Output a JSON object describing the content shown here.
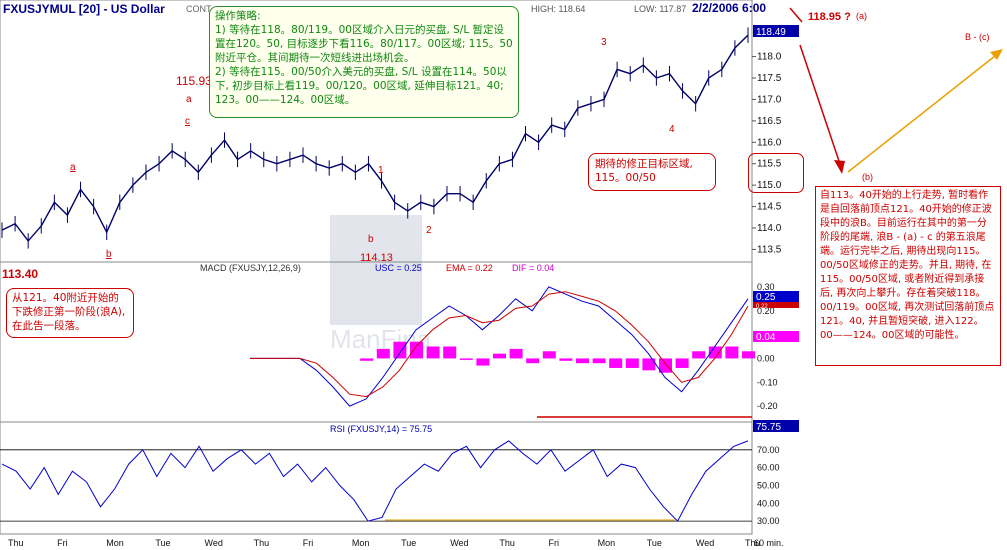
{
  "header": {
    "symbol": "FXUSJYMUL [20] - US Dollar",
    "cont": "CONT",
    "high_label": "HIGH: 118.64",
    "low_label": "LOW: 117.87",
    "datetime": "2/2/2006 6:00"
  },
  "notes": {
    "strategy": [
      "操作策略:",
      "1) 等待在118。80/119。00区域介入日元的买盘, S/L 暂定设置在120。50, 目标逐步下看116。80/117。00区域; 115。50附近平仓。其间期待一次短线进出场机会。",
      "2) 等待在115。00/50介入美元的买盘, S/L 设置在114。50以下, 初步目标上看119。00/120。00区域, 延伸目标121。40; 123。00——124。00区域。"
    ],
    "target_zone": "期待的修正目标区域, 115。00/50",
    "left_note": "从121。40附近开始的下跌修正第一阶段(浪A), 在此告一段落。",
    "right_note": "自113。40开始的上行走势, 暂时看作是自回落前顶点121。40开始的修正波段中的浪B。目前运行在其中的第一分阶段的尾端, 浪B - (a) - c 的第五浪尾端。运行完毕之后, 期待出现向115。00/50区域修正的走势。并且, 期待, 在115。00/50区域, 或者附近得到承接后, 再次向上攀升。存在着突破118。00/119。00区域, 再次测试回落前顶点121。40, 并且暂短突破, 进入122。00——124。00区域的可能性。"
  },
  "chart_data": {
    "type": "line",
    "x_ticks": [
      "Thu",
      "Fri",
      "Mon",
      "Tue",
      "Wed",
      "Thu",
      "Fri",
      "Mon",
      "Tue",
      "Wed",
      "Thu",
      "Fri",
      "Mon",
      "Tue",
      "Wed",
      "Thu",
      "60 min."
    ],
    "price": {
      "y_ticks": [
        113.5,
        114,
        114.5,
        115,
        115.5,
        116,
        116.5,
        117,
        117.5,
        118
      ],
      "ylim": [
        113.3,
        118.9
      ],
      "current_value": "118.49",
      "series": [
        113.95,
        114.1,
        113.7,
        114.05,
        114.6,
        114.3,
        114.9,
        114.5,
        113.9,
        114.6,
        115.0,
        115.3,
        115.5,
        115.8,
        115.6,
        115.3,
        115.7,
        116.05,
        115.6,
        115.8,
        115.6,
        115.5,
        115.6,
        115.7,
        115.5,
        115.4,
        115.5,
        115.3,
        115.5,
        115.1,
        114.6,
        114.4,
        114.6,
        114.5,
        114.8,
        114.8,
        114.6,
        115.1,
        115.5,
        115.6,
        116.2,
        116.0,
        116.4,
        116.3,
        116.8,
        116.9,
        117.0,
        117.7,
        117.6,
        117.8,
        117.5,
        117.6,
        117.2,
        116.9,
        117.5,
        117.7,
        118.2,
        118.5
      ],
      "labels": [
        "115.93",
        "114.13",
        "113.40",
        "118.95 ?",
        "(a)",
        "(b)",
        "B - (c)",
        "a",
        "b",
        "c",
        "1",
        "2",
        "3",
        "4"
      ]
    },
    "macd": {
      "title": "MACD (FXUSJY,12,26,9)",
      "usc": "USC = 0.25",
      "ema": "EMA = 0.22",
      "dif": "DIF = 0.04",
      "y_ticks": [
        "0.30",
        "0.20",
        "0.10",
        "0.00",
        "-0.10",
        "-0.20"
      ],
      "ylim": [
        -0.25,
        0.35
      ],
      "value_labels": [
        "0.25",
        "0.22",
        "0.04"
      ],
      "macd_line": [
        0.0,
        0.0,
        0.0,
        0.0,
        -0.05,
        -0.12,
        -0.2,
        -0.17,
        -0.08,
        0.02,
        0.12,
        0.17,
        0.22,
        0.18,
        0.12,
        0.18,
        0.25,
        0.2,
        0.3,
        0.27,
        0.24,
        0.22,
        0.16,
        0.1,
        0.02,
        -0.08,
        -0.14,
        -0.05,
        0.05,
        0.15,
        0.25
      ],
      "signal_line": [
        0.0,
        0.0,
        0.0,
        0.0,
        -0.02,
        -0.08,
        -0.15,
        -0.16,
        -0.12,
        -0.05,
        0.05,
        0.12,
        0.17,
        0.18,
        0.15,
        0.16,
        0.21,
        0.22,
        0.27,
        0.28,
        0.26,
        0.24,
        0.2,
        0.14,
        0.07,
        -0.02,
        -0.1,
        -0.08,
        0.0,
        0.1,
        0.22
      ],
      "histogram": [
        0,
        0,
        0,
        0,
        -0.03,
        -0.04,
        -0.05,
        -0.01,
        0.04,
        0.07,
        0.07,
        0.05,
        0.05,
        0.0,
        -0.03,
        0.02,
        0.04,
        -0.02,
        0.03,
        -0.01,
        -0.02,
        -0.02,
        -0.04,
        -0.04,
        -0.05,
        -0.06,
        -0.04,
        0.03,
        0.05,
        0.05,
        0.03
      ]
    },
    "rsi": {
      "title": "RSI (FXUSJY,14) = 75.75",
      "y_ticks": [
        "70.00",
        "60.00",
        "50.00",
        "40.00",
        "30.00"
      ],
      "ylim": [
        25,
        80
      ],
      "value_label": "75.75",
      "series": [
        62,
        58,
        48,
        60,
        45,
        58,
        52,
        38,
        48,
        62,
        70,
        55,
        68,
        60,
        72,
        58,
        65,
        70,
        62,
        68,
        55,
        62,
        52,
        60,
        50,
        42,
        30,
        32,
        48,
        55,
        62,
        58,
        68,
        72,
        60,
        70,
        75,
        68,
        62,
        70,
        58,
        64,
        70,
        55,
        62,
        60,
        48,
        38,
        30,
        45,
        58,
        65,
        72,
        75
      ],
      "lines": [
        70,
        30
      ]
    }
  }
}
